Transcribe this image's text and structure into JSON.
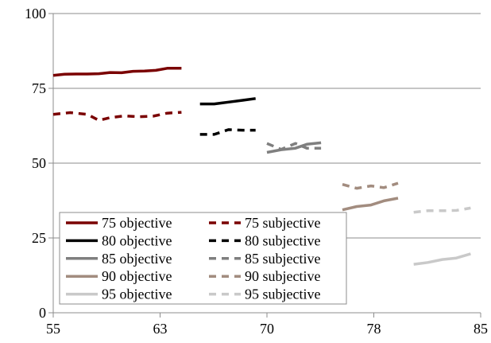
{
  "chart_data": {
    "type": "line",
    "title": "",
    "xlabel": "",
    "ylabel": "",
    "xlim": [
      55,
      85
    ],
    "ylim": [
      0,
      100
    ],
    "x_ticks": [
      {
        "value": 55,
        "label": "55"
      },
      {
        "value": 62.5,
        "label": "63"
      },
      {
        "value": 70,
        "label": "70"
      },
      {
        "value": 77.5,
        "label": "78"
      },
      {
        "value": 85,
        "label": "85"
      }
    ],
    "y_ticks": [
      {
        "value": 0,
        "label": "0"
      },
      {
        "value": 25,
        "label": "25"
      },
      {
        "value": 50,
        "label": "50"
      },
      {
        "value": 75,
        "label": "75"
      },
      {
        "value": 100,
        "label": "100"
      }
    ],
    "grid": "horizontal",
    "legend_placement": "bottom-left",
    "series": [
      {
        "name": "75 objective",
        "color": "#7a0000",
        "style": "solid",
        "points": [
          [
            55.0,
            79.3
          ],
          [
            55.8,
            79.7
          ],
          [
            56.6,
            79.8
          ],
          [
            57.4,
            79.8
          ],
          [
            58.2,
            79.9
          ],
          [
            59.0,
            80.3
          ],
          [
            59.8,
            80.2
          ],
          [
            60.6,
            80.7
          ],
          [
            61.4,
            80.8
          ],
          [
            62.2,
            81.0
          ],
          [
            63.0,
            81.7
          ],
          [
            64.0,
            81.7
          ]
        ]
      },
      {
        "name": "75 subjective",
        "color": "#7a0000",
        "style": "dashed",
        "points": [
          [
            55.0,
            66.3
          ],
          [
            56.2,
            66.9
          ],
          [
            57.4,
            66.3
          ],
          [
            58.2,
            64.3
          ],
          [
            59.0,
            65.2
          ],
          [
            60.0,
            65.8
          ],
          [
            61.0,
            65.5
          ],
          [
            62.0,
            65.7
          ],
          [
            63.0,
            66.7
          ],
          [
            64.0,
            67.0
          ]
        ]
      },
      {
        "name": "80 objective",
        "color": "#000000",
        "style": "solid",
        "points": [
          [
            65.3,
            69.8
          ],
          [
            66.3,
            69.8
          ],
          [
            67.3,
            70.4
          ],
          [
            68.3,
            71.0
          ],
          [
            69.2,
            71.6
          ]
        ]
      },
      {
        "name": "80 subjective",
        "color": "#000000",
        "style": "dashed",
        "points": [
          [
            65.3,
            59.6
          ],
          [
            66.3,
            59.6
          ],
          [
            67.3,
            61.2
          ],
          [
            68.3,
            61.0
          ],
          [
            69.2,
            61.0
          ]
        ]
      },
      {
        "name": "85 objective",
        "color": "#7f7f7f",
        "style": "solid",
        "points": [
          [
            70.0,
            53.6
          ],
          [
            71.0,
            54.5
          ],
          [
            72.0,
            55.0
          ],
          [
            72.8,
            56.3
          ],
          [
            73.8,
            56.8
          ]
        ]
      },
      {
        "name": "85 subjective",
        "color": "#7f7f7f",
        "style": "dashed",
        "points": [
          [
            70.0,
            56.6
          ],
          [
            71.0,
            54.6
          ],
          [
            72.0,
            56.6
          ],
          [
            72.8,
            55.0
          ],
          [
            73.8,
            55.0
          ]
        ]
      },
      {
        "name": "90 objective",
        "color": "#a28c7f",
        "style": "solid",
        "points": [
          [
            75.3,
            34.4
          ],
          [
            76.3,
            35.5
          ],
          [
            77.3,
            36.0
          ],
          [
            78.2,
            37.4
          ],
          [
            79.2,
            38.3
          ]
        ]
      },
      {
        "name": "90 subjective",
        "color": "#a28c7f",
        "style": "dashed",
        "points": [
          [
            75.3,
            42.9
          ],
          [
            76.3,
            41.6
          ],
          [
            77.3,
            42.4
          ],
          [
            78.2,
            41.8
          ],
          [
            79.2,
            43.3
          ]
        ]
      },
      {
        "name": "95 objective",
        "color": "#c9c9c9",
        "style": "solid",
        "points": [
          [
            80.3,
            16.2
          ],
          [
            81.3,
            16.8
          ],
          [
            82.3,
            17.8
          ],
          [
            83.3,
            18.3
          ],
          [
            84.3,
            19.7
          ]
        ]
      },
      {
        "name": "95 subjective",
        "color": "#c9c9c9",
        "style": "dashed",
        "points": [
          [
            80.3,
            33.6
          ],
          [
            81.3,
            34.1
          ],
          [
            82.3,
            34.1
          ],
          [
            83.3,
            34.2
          ],
          [
            84.3,
            35.0
          ]
        ]
      }
    ]
  }
}
